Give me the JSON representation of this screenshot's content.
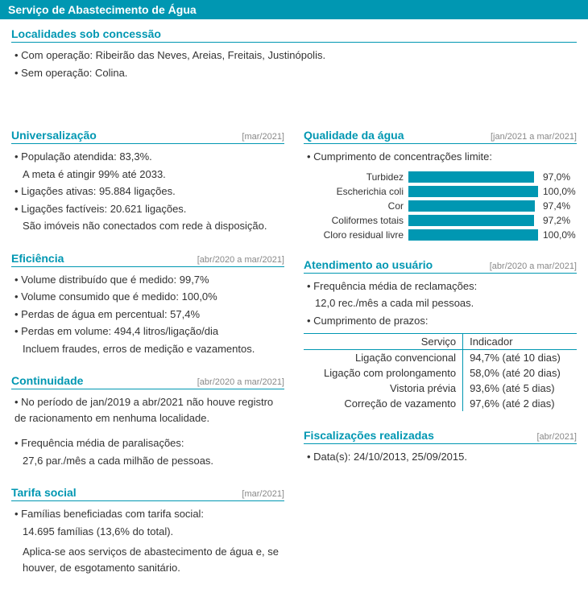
{
  "header": {
    "title": "Serviço de Abastecimento de Água"
  },
  "localidades": {
    "heading": "Localidades sob concessão",
    "lines": [
      "Com operação: Ribeirão das Neves, Areias, Freitais, Justinópolis.",
      "Sem operação: Colina."
    ]
  },
  "universalizacao": {
    "heading": "Universalização",
    "period": "[mar/2021]",
    "items": [
      {
        "text": "População atendida: 83,3%.",
        "sub": "A meta é atingir 99% até 2033."
      },
      {
        "text": "Ligações ativas: 95.884 ligações."
      },
      {
        "text": "Ligações factíveis: 20.621 ligações.",
        "sub": "São imóveis não conectados com rede à disposição."
      }
    ]
  },
  "eficiencia": {
    "heading": "Eficiência",
    "period": "[abr/2020 a mar/2021]",
    "items": [
      {
        "text": "Volume distribuído que é medido: 99,7%"
      },
      {
        "text": "Volume consumido que é medido: 100,0%"
      },
      {
        "text": "Perdas de água em percentual: 57,4%"
      },
      {
        "text": "Perdas em volume: 494,4 litros/ligação/dia",
        "sub": "Incluem fraudes, erros de medição e vazamentos."
      }
    ]
  },
  "continuidade": {
    "heading": "Continuidade",
    "period": "[abr/2020 a mar/2021]",
    "items": [
      {
        "text": "No período de jan/2019 a abr/2021 não houve registro de racionamento em nenhuma localidade.",
        "wrap": true
      },
      {
        "text": "Frequência média de paralisações:",
        "sub": "27,6 par./mês a cada milhão de pessoas.",
        "gapTop": true
      }
    ]
  },
  "tarifa": {
    "heading": "Tarifa social",
    "period": "[mar/2021]",
    "items": [
      {
        "text": "Famílias beneficiadas com tarifa social:",
        "sub": "14.695 famílias (13,6% do total)."
      }
    ],
    "footnote": "Aplica-se aos serviços de abastecimento de água e, se houver, de esgotamento sanitário."
  },
  "qualidade": {
    "heading": "Qualidade da água",
    "period": "[jan/2021 a mar/2021]",
    "intro": "Cumprimento de concentrações limite:",
    "chart": {
      "bar_color": "#0097b2",
      "bars": [
        {
          "label": "Turbidez",
          "value_text": "97,0%",
          "value_num": 97.0
        },
        {
          "label": "Escherichia coli",
          "value_text": "100,0%",
          "value_num": 100.0
        },
        {
          "label": "Cor",
          "value_text": "97,4%",
          "value_num": 97.4
        },
        {
          "label": "Coliformes totais",
          "value_text": "97,2%",
          "value_num": 97.2
        },
        {
          "label": "Cloro residual livre",
          "value_text": "100,0%",
          "value_num": 100.0
        }
      ]
    }
  },
  "atendimento": {
    "heading": "Atendimento ao usuário",
    "period": "[abr/2020 a mar/2021]",
    "items": [
      {
        "text": "Frequência média de reclamações:",
        "sub": "12,0 rec./mês a cada mil pessoas."
      },
      {
        "text": "Cumprimento de prazos:"
      }
    ],
    "table": {
      "head": [
        "Serviço",
        "Indicador"
      ],
      "rows": [
        [
          "Ligação convencional",
          "94,7% (até 10 dias)"
        ],
        [
          "Ligação com prolongamento",
          "58,0% (até 20 dias)"
        ],
        [
          "Vistoria prévia",
          "93,6% (até 5 dias)"
        ],
        [
          "Correção de vazamento",
          "97,6% (até 2 dias)"
        ]
      ]
    }
  },
  "fiscalizacoes": {
    "heading": "Fiscalizações realizadas",
    "period": "[abr/2021]",
    "items": [
      {
        "text": "Data(s): 24/10/2013, 25/09/2015."
      }
    ]
  }
}
